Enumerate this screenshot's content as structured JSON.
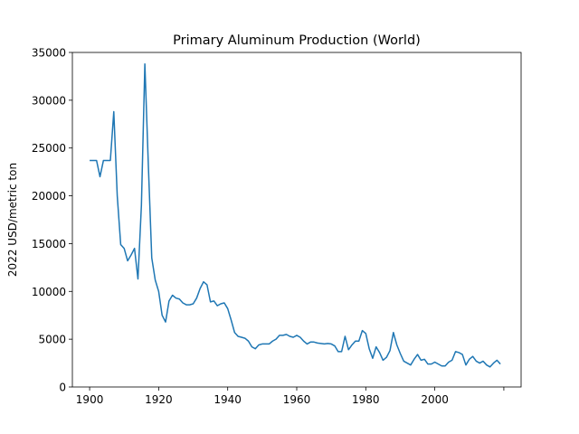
{
  "chart_data": {
    "type": "line",
    "title": "Primary Aluminum Production (World)",
    "xlabel": "",
    "ylabel": "2022 USD/metric ton",
    "xlim": [
      1895,
      2025
    ],
    "ylim": [
      0,
      35000
    ],
    "x_ticks": [
      1900,
      1920,
      1940,
      1960,
      1980,
      2000
    ],
    "y_ticks": [
      0,
      5000,
      10000,
      15000,
      20000,
      25000,
      30000,
      35000
    ],
    "grid": false,
    "color": "#1f77b4",
    "series": [
      {
        "x": [
          1900,
          1901,
          1902,
          1903,
          1904,
          1905,
          1906,
          1907,
          1908,
          1909,
          1910,
          1911,
          1912,
          1913,
          1914,
          1915,
          1916,
          1917,
          1918,
          1919,
          1920,
          1921,
          1922,
          1923,
          1924,
          1925,
          1926,
          1927,
          1928,
          1929,
          1930,
          1931,
          1932,
          1933,
          1934,
          1935,
          1936,
          1937,
          1938,
          1939,
          1940,
          1941,
          1942,
          1943,
          1944,
          1945,
          1946,
          1947,
          1948,
          1949,
          1950,
          1951,
          1952,
          1953,
          1954,
          1955,
          1956,
          1957,
          1958,
          1959,
          1960,
          1961,
          1962,
          1963,
          1964,
          1965,
          1966,
          1967,
          1968,
          1969,
          1970,
          1971,
          1972,
          1973,
          1974,
          1975,
          1976,
          1977,
          1978,
          1979,
          1980,
          1981,
          1982,
          1983,
          1984,
          1985,
          1986,
          1987,
          1988,
          1989,
          1990,
          1991,
          1992,
          1993,
          1994,
          1995,
          1996,
          1997,
          1998,
          1999,
          2000,
          2001,
          2002,
          2003,
          2004,
          2005,
          2006,
          2007,
          2008,
          2009,
          2010,
          2011,
          2012,
          2013,
          2014,
          2015,
          2016,
          2017,
          2018,
          2019
        ],
        "values": [
          23700,
          23700,
          23700,
          22000,
          23700,
          23700,
          23700,
          28800,
          20000,
          14900,
          14500,
          13200,
          13800,
          14500,
          11300,
          19000,
          33800,
          23300,
          13500,
          11200,
          10000,
          7500,
          6800,
          9000,
          9600,
          9300,
          9200,
          8800,
          8600,
          8600,
          8700,
          9300,
          10300,
          11000,
          10700,
          8900,
          9000,
          8500,
          8700,
          8800,
          8200,
          7000,
          5700,
          5300,
          5200,
          5100,
          4800,
          4200,
          4000,
          4400,
          4500,
          4500,
          4500,
          4800,
          5000,
          5400,
          5400,
          5500,
          5300,
          5200,
          5400,
          5200,
          4800,
          4500,
          4700,
          4700,
          4600,
          4550,
          4500,
          4550,
          4500,
          4300,
          3700,
          3700,
          5300,
          3900,
          4400,
          4800,
          4800,
          5900,
          5600,
          4000,
          3000,
          4200,
          3600,
          2800,
          3100,
          3800,
          5700,
          4400,
          3500,
          2700,
          2500,
          2300,
          2900,
          3400,
          2800,
          2900,
          2400,
          2400,
          2600,
          2400,
          2200,
          2200,
          2600,
          2800,
          3700,
          3600,
          3400,
          2300,
          2900,
          3200,
          2700,
          2500,
          2700,
          2300,
          2100,
          2500,
          2800,
          2400
        ]
      }
    ]
  }
}
